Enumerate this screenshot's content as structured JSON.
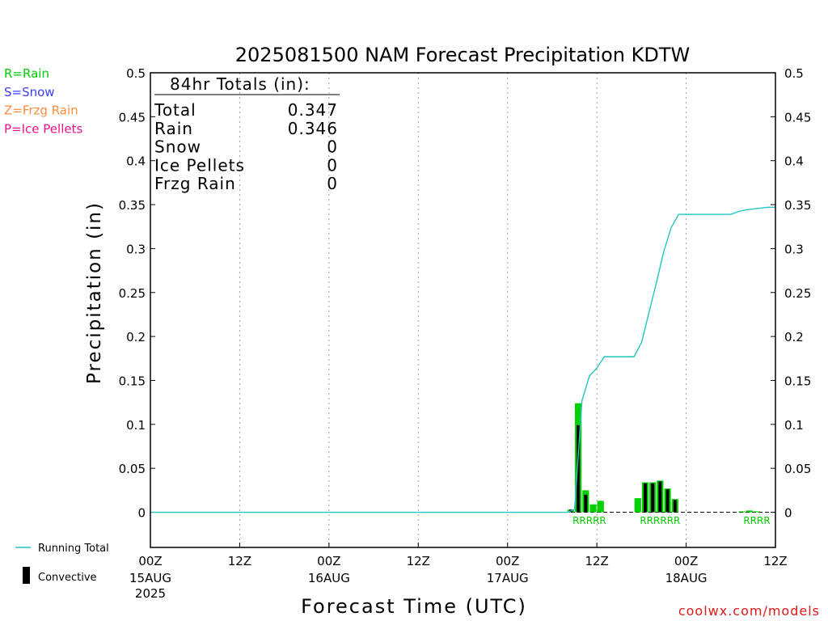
{
  "chart_data": {
    "type": "bar",
    "title": "2025081500 NAM Forecast Precipitation KDTW",
    "xlabel": "Forecast Time (UTC)",
    "ylabel": "Precipitation (in)",
    "ylim": [
      -0.04,
      0.5
    ],
    "y_ticks": [
      "0.5",
      "0.45",
      "0.4",
      "0.35",
      "0.3",
      "0.25",
      "0.2",
      "0.15",
      "0.1",
      "0.05",
      "0"
    ],
    "x_ticks": [
      {
        "line1": "00Z",
        "line2": "15AUG",
        "line3": "2025"
      },
      {
        "line1": "12Z",
        "line2": "",
        "line3": ""
      },
      {
        "line1": "00Z",
        "line2": "16AUG",
        "line3": ""
      },
      {
        "line1": "12Z",
        "line2": "",
        "line3": ""
      },
      {
        "line1": "00Z",
        "line2": "17AUG",
        "line3": ""
      },
      {
        "line1": "12Z",
        "line2": "",
        "line3": ""
      },
      {
        "line1": "00Z",
        "line2": "18AUG",
        "line3": ""
      },
      {
        "line1": "12Z",
        "line2": "",
        "line3": ""
      }
    ],
    "x_unit": "forecast hour",
    "xlim": [
      0,
      84
    ],
    "grid": "vertical dotted at each 12Z/00Z tick",
    "series": [
      {
        "name": "Rain",
        "color": "#00d000",
        "x": [
          57,
          58,
          59,
          60,
          61,
          66,
          67,
          68,
          69,
          70,
          71,
          80,
          81,
          82
        ],
        "values": [
          0.003,
          0.124,
          0.025,
          0.009,
          0.013,
          0.016,
          0.034,
          0.034,
          0.036,
          0.027,
          0.015,
          0.001,
          0.002,
          0.001
        ]
      },
      {
        "name": "Convective",
        "color": "#000000",
        "x": [
          57,
          58,
          59,
          67,
          68,
          69,
          70,
          71
        ],
        "values": [
          0.003,
          0.099,
          0.02,
          0.033,
          0.033,
          0.035,
          0.026,
          0.014
        ]
      },
      {
        "name": "Running Total",
        "color": "#22c4c4",
        "x": [
          0,
          56,
          57,
          58,
          59,
          60,
          61,
          62,
          63,
          64,
          65,
          66,
          67,
          68,
          69,
          70,
          71,
          72,
          73,
          74,
          75,
          76,
          77,
          78,
          79,
          80,
          81,
          82,
          83,
          84
        ],
        "values": [
          0,
          0,
          0.003,
          0.127,
          0.155,
          0.164,
          0.177,
          0.177,
          0.177,
          0.177,
          0.177,
          0.193,
          0.227,
          0.261,
          0.297,
          0.324,
          0.339,
          0.339,
          0.339,
          0.339,
          0.339,
          0.339,
          0.339,
          0.339,
          0.342,
          0.344,
          0.345,
          0.346,
          0.347,
          0.347
        ]
      }
    ],
    "precip_type_labels": [
      {
        "x_center": 59,
        "text": "RRRRR"
      },
      {
        "x_center": 68.5,
        "text": "RRRRRR"
      },
      {
        "x_center": 81.5,
        "text": "RRRR"
      }
    ],
    "totals_box": {
      "heading": "84hr Totals (in):",
      "rows": [
        {
          "label": "Total",
          "value": "0.347"
        },
        {
          "label": "Rain",
          "value": "0.346"
        },
        {
          "label": "Snow",
          "value": "0"
        },
        {
          "label": "Ice Pellets",
          "value": "0"
        },
        {
          "label": "Frzg Rain",
          "value": "0"
        }
      ]
    },
    "type_key": [
      {
        "text": "R=Rain",
        "color": "#00d000"
      },
      {
        "text": "S=Snow",
        "color": "#3c3cff"
      },
      {
        "text": "Z=Frzg Rain",
        "color": "#ff8c3c"
      },
      {
        "text": "P=Ice Pellets",
        "color": "#e6148c"
      }
    ],
    "legend": [
      {
        "label": "Running Total",
        "color": "#22c4c4",
        "kind": "line"
      },
      {
        "label": "Convective",
        "color": "#000000",
        "kind": "bar"
      }
    ],
    "legend_placement": "bottom-left"
  },
  "footer": "coolwx.com/models"
}
